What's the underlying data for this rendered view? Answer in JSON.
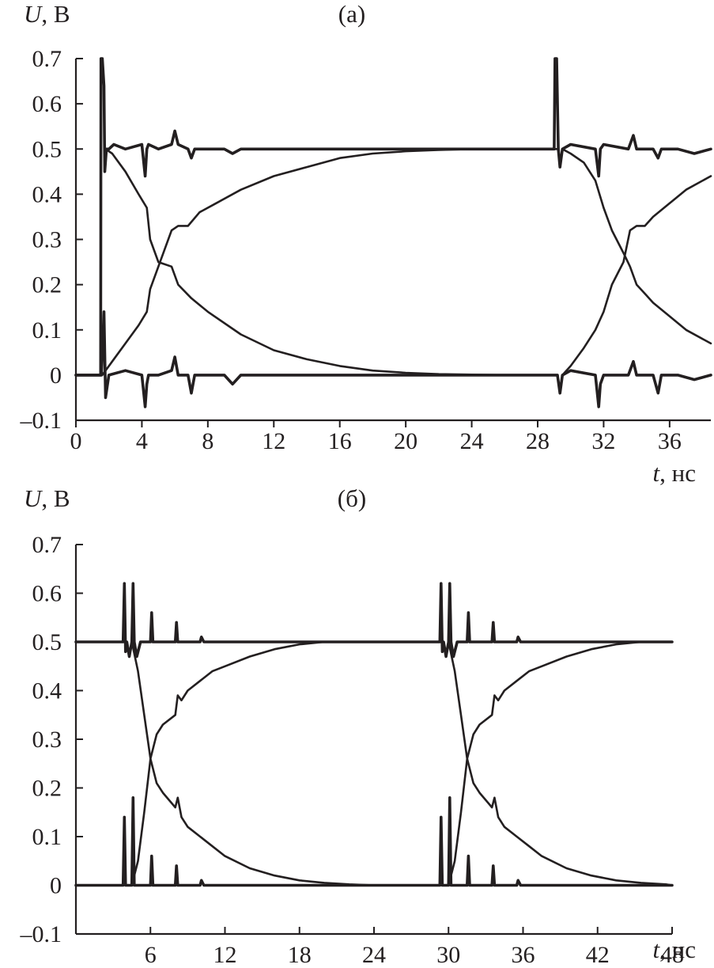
{
  "chart_data": [
    {
      "type": "line",
      "title": "(а)",
      "ylabel": "U",
      "yunit": "В",
      "xlabel": "t",
      "xunit": "нс",
      "xlim": [
        0,
        38.5
      ],
      "ylim": [
        -0.1,
        0.7
      ],
      "x_ticks": [
        0,
        4,
        8,
        12,
        16,
        20,
        24,
        28,
        32,
        36
      ],
      "y_ticks": [
        -0.1,
        0,
        0.1,
        0.2,
        0.3,
        0.4,
        0.5,
        0.6,
        0.7
      ],
      "x_tick_labels": [
        "0",
        "4",
        "8",
        "12",
        "16",
        "20",
        "24",
        "28",
        "32",
        "36"
      ],
      "y_tick_labels": [
        "–0.1",
        "0",
        "0.1",
        "0.2",
        "0.3",
        "0.4",
        "0.5",
        "0.6",
        "0.7"
      ],
      "grid": false,
      "legend": "none",
      "series": [
        {
          "kind": "flat",
          "x": [
            0,
            1.5,
            1.52,
            1.6,
            1.7,
            1.75,
            1.85,
            2.0,
            2.3,
            3.0,
            4.0,
            4.2,
            4.3,
            4.4,
            5.0,
            5.8,
            6.0,
            6.2,
            6.8,
            7.0,
            7.2,
            9.0,
            9.5,
            10.0,
            12.0,
            16.0,
            20.0,
            24.0,
            28.0,
            29.0,
            29.05,
            29.15,
            29.25,
            29.35,
            29.5,
            30.0,
            31.5,
            31.7,
            31.8,
            32.0,
            33.5,
            33.8,
            34.0,
            35.0,
            35.3,
            35.5,
            36.5,
            37.5,
            38.5
          ],
          "y": [
            0,
            0,
            0.7,
            0.7,
            0.64,
            0.45,
            0.5,
            0.5,
            0.51,
            0.5,
            0.51,
            0.44,
            0.5,
            0.51,
            0.5,
            0.51,
            0.54,
            0.51,
            0.5,
            0.48,
            0.5,
            0.5,
            0.49,
            0.5,
            0.5,
            0.5,
            0.5,
            0.5,
            0.5,
            0.5,
            0.7,
            0.7,
            0.5,
            0.46,
            0.5,
            0.51,
            0.5,
            0.44,
            0.5,
            0.51,
            0.5,
            0.53,
            0.5,
            0.5,
            0.48,
            0.5,
            0.5,
            0.49,
            0.5
          ]
        },
        {
          "kind": "rise",
          "x": [
            1.6,
            1.8,
            2.2,
            3.0,
            3.8,
            4.3,
            4.5,
            5.0,
            5.8,
            6.2,
            6.8,
            7.5,
            8.5,
            10.0,
            12.0,
            14.0,
            16.0,
            18.0,
            20.0,
            22.0,
            24.0,
            26.0,
            28.0,
            29.2
          ],
          "y": [
            0.0,
            0.01,
            0.03,
            0.07,
            0.11,
            0.14,
            0.19,
            0.24,
            0.32,
            0.33,
            0.33,
            0.36,
            0.38,
            0.41,
            0.44,
            0.46,
            0.48,
            0.49,
            0.495,
            0.498,
            0.5,
            0.5,
            0.5,
            0.5
          ]
        },
        {
          "kind": "fall",
          "x": [
            1.8,
            2.2,
            3.0,
            3.8,
            4.3,
            4.5,
            5.0,
            5.8,
            6.2,
            7.0,
            8.0,
            10.0,
            12.0,
            14.0,
            16.0,
            18.0,
            20.0,
            22.0,
            24.0,
            26.0,
            28.0,
            29.2
          ],
          "y": [
            0.5,
            0.49,
            0.45,
            0.4,
            0.37,
            0.3,
            0.25,
            0.24,
            0.2,
            0.17,
            0.14,
            0.09,
            0.055,
            0.035,
            0.02,
            0.01,
            0.005,
            0.002,
            0.001,
            0.0,
            0.0,
            0.0
          ]
        },
        {
          "kind": "base",
          "x": [
            0,
            1.5,
            1.55,
            1.7,
            1.8,
            2.0,
            3.0,
            4.0,
            4.2,
            4.3,
            4.4,
            5.0,
            5.8,
            6.0,
            6.2,
            6.8,
            7.0,
            7.2,
            9.0,
            9.5,
            10.0,
            12.0,
            16.0,
            20.0,
            24.0,
            28.0,
            29.0,
            29.2,
            29.35,
            29.5,
            30.0,
            31.5,
            31.7,
            31.8,
            32.0,
            33.5,
            33.8,
            34.0,
            35.0,
            35.3,
            35.5,
            36.5,
            37.5,
            38.5
          ],
          "y": [
            0,
            0,
            0,
            0.14,
            -0.05,
            0.0,
            0.01,
            0.0,
            -0.07,
            -0.02,
            0.0,
            0.0,
            0.01,
            0.04,
            0.0,
            0.0,
            -0.04,
            0.0,
            0.0,
            -0.02,
            0.0,
            0.0,
            0.0,
            0.0,
            0.0,
            0.0,
            0.0,
            0.0,
            -0.04,
            0.0,
            0.01,
            0.0,
            -0.07,
            -0.02,
            0.0,
            0.0,
            0.03,
            0.0,
            0.0,
            -0.04,
            0.0,
            0.0,
            -0.01,
            0.0
          ]
        },
        {
          "kind": "rise",
          "x": [
            29.5,
            30.0,
            30.8,
            31.5,
            32.0,
            32.5,
            33.2,
            33.6,
            34.0,
            34.5,
            35.0,
            36.0,
            37.0,
            38.5
          ],
          "y": [
            0.0,
            0.02,
            0.06,
            0.1,
            0.14,
            0.2,
            0.25,
            0.32,
            0.33,
            0.33,
            0.35,
            0.38,
            0.41,
            0.44
          ]
        },
        {
          "kind": "fall",
          "x": [
            29.5,
            30.0,
            30.8,
            31.5,
            32.0,
            32.5,
            33.2,
            33.6,
            34.0,
            34.5,
            35.0,
            36.0,
            37.0,
            38.5
          ],
          "y": [
            0.5,
            0.49,
            0.47,
            0.43,
            0.37,
            0.32,
            0.27,
            0.24,
            0.2,
            0.18,
            0.16,
            0.13,
            0.1,
            0.07
          ]
        }
      ]
    },
    {
      "type": "line",
      "title": "(б)",
      "ylabel": "U",
      "yunit": "В",
      "xlabel": "t",
      "xunit": "нс",
      "xlim": [
        0,
        48
      ],
      "ylim": [
        -0.1,
        0.7
      ],
      "x_ticks": [
        6,
        12,
        18,
        24,
        30,
        36,
        42,
        48
      ],
      "y_ticks": [
        -0.1,
        0,
        0.1,
        0.2,
        0.3,
        0.4,
        0.5,
        0.6,
        0.7
      ],
      "x_tick_labels": [
        "6",
        "12",
        "18",
        "24",
        "30",
        "36",
        "42",
        "48"
      ],
      "y_tick_labels": [
        "–0.1",
        "0",
        "0.1",
        "0.2",
        "0.3",
        "0.4",
        "0.5",
        "0.6",
        "0.7"
      ],
      "grid": false,
      "legend": "none",
      "series": [
        {
          "kind": "flat",
          "x": [
            0,
            3.8,
            3.9,
            4.0,
            4.1,
            4.3,
            4.5,
            4.6,
            4.7,
            4.9,
            5.2,
            6.0,
            6.1,
            6.2,
            6.4,
            8.0,
            8.1,
            8.2,
            8.4,
            10.0,
            10.1,
            10.3,
            12.0,
            20.0,
            29.3,
            29.4,
            29.5,
            29.6,
            29.8,
            30.0,
            30.1,
            30.2,
            30.4,
            30.7,
            31.5,
            31.6,
            31.7,
            31.9,
            33.5,
            33.6,
            33.7,
            33.9,
            35.5,
            35.6,
            35.8,
            38.0,
            48.0
          ],
          "y": [
            0.5,
            0.5,
            0.62,
            0.48,
            0.5,
            0.47,
            0.5,
            0.62,
            0.5,
            0.47,
            0.5,
            0.5,
            0.56,
            0.5,
            0.5,
            0.5,
            0.54,
            0.5,
            0.5,
            0.5,
            0.51,
            0.5,
            0.5,
            0.5,
            0.5,
            0.62,
            0.48,
            0.5,
            0.47,
            0.5,
            0.62,
            0.5,
            0.47,
            0.5,
            0.5,
            0.56,
            0.5,
            0.5,
            0.5,
            0.54,
            0.5,
            0.5,
            0.5,
            0.51,
            0.5,
            0.5,
            0.5
          ]
        },
        {
          "kind": "rise",
          "x": [
            4.5,
            5.0,
            5.5,
            6.0,
            6.5,
            7.0,
            8.0,
            8.2,
            8.5,
            9.0,
            10.0,
            11.0,
            12.0,
            14.0,
            16.0,
            18.0,
            20.0,
            22.0,
            24.0,
            26.0,
            28.0,
            29.5
          ],
          "y": [
            0.0,
            0.05,
            0.15,
            0.26,
            0.31,
            0.33,
            0.35,
            0.39,
            0.38,
            0.4,
            0.42,
            0.44,
            0.45,
            0.47,
            0.485,
            0.495,
            0.5,
            0.5,
            0.5,
            0.5,
            0.5,
            0.5
          ]
        },
        {
          "kind": "fall",
          "x": [
            4.5,
            5.0,
            5.5,
            6.0,
            6.5,
            7.0,
            8.0,
            8.2,
            8.5,
            9.0,
            10.0,
            11.0,
            12.0,
            14.0,
            16.0,
            18.0,
            20.0,
            22.0,
            24.0,
            26.0,
            28.0,
            29.5
          ],
          "y": [
            0.5,
            0.44,
            0.35,
            0.26,
            0.21,
            0.19,
            0.16,
            0.18,
            0.14,
            0.12,
            0.1,
            0.08,
            0.06,
            0.035,
            0.02,
            0.01,
            0.005,
            0.002,
            0.0,
            0.0,
            0.0,
            0.0
          ]
        },
        {
          "kind": "base",
          "x": [
            0,
            3.8,
            3.9,
            4.0,
            4.3,
            4.5,
            4.6,
            4.7,
            5.2,
            6.0,
            6.1,
            6.2,
            8.0,
            8.1,
            8.2,
            10.0,
            10.1,
            10.3,
            12.0,
            20.0,
            29.3,
            29.4,
            29.5,
            29.8,
            30.0,
            30.1,
            30.2,
            30.7,
            31.5,
            31.6,
            31.7,
            33.5,
            33.6,
            33.7,
            35.5,
            35.6,
            35.8,
            38.0,
            48.0
          ],
          "y": [
            0.0,
            0.0,
            0.14,
            0.0,
            0.0,
            0.0,
            0.18,
            0.0,
            0.0,
            0.0,
            0.06,
            0.0,
            0.0,
            0.04,
            0.0,
            0.0,
            0.01,
            0.0,
            0.0,
            0.0,
            0.0,
            0.14,
            0.0,
            0.0,
            0.0,
            0.18,
            0.0,
            0.0,
            0.0,
            0.06,
            0.0,
            0.0,
            0.04,
            0.0,
            0.0,
            0.01,
            0.0,
            0.0,
            0.0
          ]
        },
        {
          "kind": "rise",
          "x": [
            30.0,
            30.5,
            31.0,
            31.5,
            32.0,
            32.5,
            33.5,
            33.7,
            34.0,
            34.5,
            35.5,
            36.5,
            37.5,
            39.5,
            41.5,
            43.5,
            45.5,
            47.5,
            48.0
          ],
          "y": [
            0.0,
            0.05,
            0.15,
            0.26,
            0.31,
            0.33,
            0.35,
            0.39,
            0.38,
            0.4,
            0.42,
            0.44,
            0.45,
            0.47,
            0.485,
            0.495,
            0.5,
            0.5,
            0.5
          ]
        },
        {
          "kind": "fall",
          "x": [
            30.0,
            30.5,
            31.0,
            31.5,
            32.0,
            32.5,
            33.5,
            33.7,
            34.0,
            34.5,
            35.5,
            36.5,
            37.5,
            39.5,
            41.5,
            43.5,
            45.5,
            47.5,
            48.0
          ],
          "y": [
            0.5,
            0.44,
            0.35,
            0.26,
            0.21,
            0.19,
            0.16,
            0.18,
            0.14,
            0.12,
            0.1,
            0.08,
            0.06,
            0.035,
            0.02,
            0.01,
            0.005,
            0.002,
            0.0
          ]
        }
      ]
    }
  ]
}
